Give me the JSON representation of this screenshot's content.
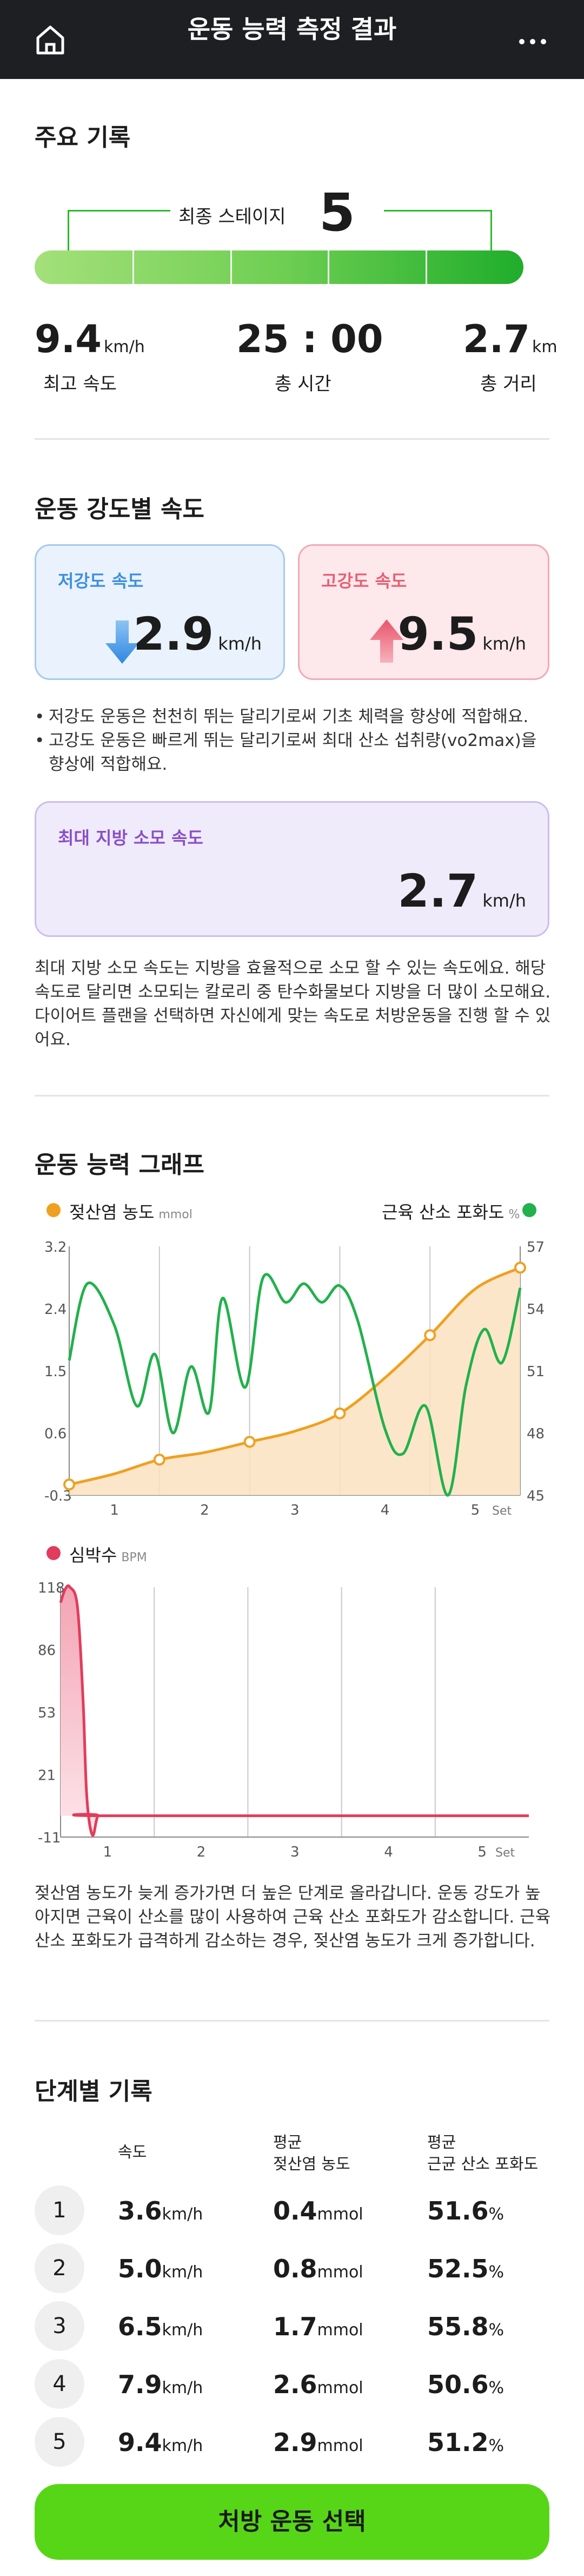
{
  "header": {
    "title": "운동 능력 측정 결과",
    "home_icon": "home-icon",
    "more_icon": "more-vertical-icon"
  },
  "summary": {
    "section_title": "주요 기록",
    "final_stage_label": "최종 스테이지",
    "final_stage_value": "5",
    "stage_count": 5,
    "stats": [
      {
        "value": "9.4",
        "unit": "km/h",
        "label": "최고 속도"
      },
      {
        "value": "25 : 00",
        "unit": "",
        "label": "총 시간"
      },
      {
        "value": "2.7",
        "unit": "km",
        "label": "총 거리"
      }
    ]
  },
  "intensity": {
    "section_title": "운동 강도별 속도",
    "low": {
      "label": "저강도 속도",
      "value": "2.9",
      "unit": "km/h",
      "color": "#3d8fe0"
    },
    "high": {
      "label": "고강도 속도",
      "value": "9.5",
      "unit": "km/h",
      "color": "#e85f73"
    },
    "bullets": [
      "저강도 운동은 천천히 뛰는 달리기로써 기초 체력을 향상에 적합해요.",
      "고강도 운동은 빠르게 뛰는 달리기로써 최대 산소 섭취량(vo2max)을 향상에 적합해요."
    ],
    "fat": {
      "label": "최대 지방 소모 속도",
      "value": "2.7",
      "unit": "km/h",
      "color": "#8a4fc8"
    },
    "description": "최대 지방 소모 속도는 지방을 효율적으로 소모 할 수 있는 속도에요. 해당 속도로 달리면 소모되는 칼로리 중 탄수화물보다 지방을 더 많이 소모해요. 다이어트 플랜을 선택하면 자신에게 맞는 속도로 처방운동을 진행 할 수 있어요."
  },
  "graph": {
    "section_title": "운동 능력 그래프",
    "legend_lactate": {
      "label": "젖산염 농도",
      "unit": "mmol",
      "color": "#f0a020"
    },
    "legend_smo2": {
      "label": "근육 산소 포화도",
      "unit": "%",
      "color": "#22b14c"
    },
    "legend_hr": {
      "label": "심박수",
      "unit": "BPM",
      "color": "#e23c5c"
    },
    "description": "젖산염 농도가 늦게 증가가면 더 높은 단계로 올라갑니다. 운동 강도가 높아지면 근육이 산소를 많이 사용하여 근육 산소 포화도가 감소합니다. 근육 산소 포화도가 급격하게 감소하는 경우, 젖산염 농도가 크게 증가합니다."
  },
  "chart_data": [
    {
      "type": "line",
      "y_left_ticks": [
        "3.2",
        "2.4",
        "1.5",
        "0.6",
        "-0.3"
      ],
      "y_right_ticks": [
        "57",
        "54",
        "51",
        "48",
        "45"
      ],
      "x_ticks": [
        "1",
        "2",
        "3",
        "4",
        "5"
      ],
      "x_unit": "Set",
      "ylim_left": [
        -0.3,
        3.2
      ],
      "ylim_right": [
        45,
        57
      ],
      "xlim": [
        0.5,
        5.5
      ],
      "series": [
        {
          "name": "젖산염 농도",
          "axis": "left",
          "x": [
            0.5,
            1.0,
            1.5,
            2.0,
            2.5,
            3.0,
            3.5,
            4.0,
            4.5,
            5.0,
            5.5
          ],
          "values": [
            -0.15,
            0.0,
            0.2,
            0.3,
            0.45,
            0.6,
            0.85,
            1.35,
            1.95,
            2.6,
            2.9
          ]
        },
        {
          "name": "근육 산소 포화도",
          "axis": "right",
          "x": [
            0.5,
            0.7,
            1.0,
            1.25,
            1.45,
            1.65,
            1.85,
            2.05,
            2.2,
            2.45,
            2.65,
            2.9,
            3.1,
            3.3,
            3.5,
            3.7,
            4.0,
            4.2,
            4.45,
            4.7,
            4.9,
            5.1,
            5.3,
            5.5
          ],
          "values": [
            51.5,
            55.2,
            53.2,
            49.3,
            51.8,
            48.0,
            51.2,
            49.0,
            54.5,
            50.2,
            55.5,
            54.3,
            55.2,
            54.3,
            55.1,
            53.4,
            48.2,
            47.0,
            49.3,
            45.0,
            50.3,
            53.0,
            51.4,
            55.0
          ]
        }
      ],
      "grid": true
    },
    {
      "type": "line",
      "y_ticks": [
        "118",
        "86",
        "53",
        "21",
        "-11"
      ],
      "x_ticks": [
        "1",
        "2",
        "3",
        "4",
        "5"
      ],
      "x_unit": "Set",
      "ylim": [
        -11,
        118
      ],
      "xlim": [
        0.5,
        5.5
      ],
      "series": [
        {
          "name": "심박수",
          "x": [
            0.5,
            0.55,
            0.6,
            0.68,
            0.74,
            0.78,
            0.84,
            0.9,
            1.0,
            5.5
          ],
          "values": [
            110,
            117,
            118,
            108,
            60,
            10,
            -10,
            0,
            0,
            0
          ]
        }
      ],
      "grid": true
    }
  ],
  "stages": {
    "section_title": "단계별 기록",
    "headers": {
      "speed": "속도",
      "lactate_1": "평균",
      "lactate_2": "젖산염 농도",
      "smo2_1": "평균",
      "smo2_2": "근균 산소 포화도"
    },
    "rows": [
      {
        "n": "1",
        "speed": "3.6",
        "lactate": "0.4",
        "smo2": "51.6"
      },
      {
        "n": "2",
        "speed": "5.0",
        "lactate": "0.8",
        "smo2": "52.5"
      },
      {
        "n": "3",
        "speed": "6.5",
        "lactate": "1.7",
        "smo2": "55.8"
      },
      {
        "n": "4",
        "speed": "7.9",
        "lactate": "2.6",
        "smo2": "50.6"
      },
      {
        "n": "5",
        "speed": "9.4",
        "lactate": "2.9",
        "smo2": "51.2"
      }
    ],
    "units": {
      "speed": "km/h",
      "lactate": "mmol",
      "smo2": "%"
    }
  },
  "cta": {
    "label": "처방 운동 선택"
  }
}
